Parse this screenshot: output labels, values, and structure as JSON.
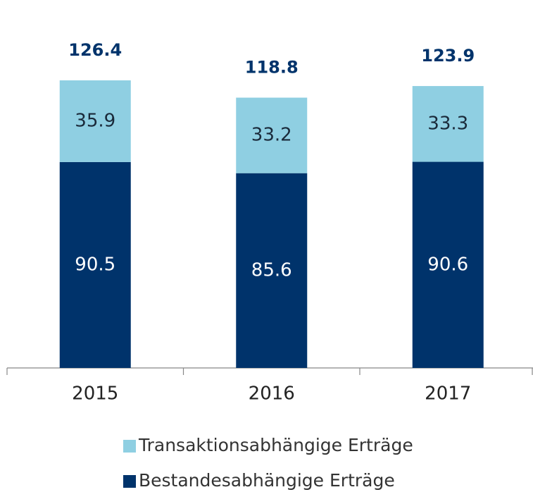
{
  "chart_data": {
    "type": "stacked_bar",
    "categories": [
      "2015",
      "2016",
      "2017"
    ],
    "series": [
      {
        "name": "Bestandesabhängige Erträge",
        "color": "#00336b",
        "label_color": "#ffffff",
        "values": [
          90.5,
          85.6,
          90.6
        ]
      },
      {
        "name": "Transaktionsabhängige Erträge",
        "color": "#8fcfe2",
        "label_color": "#1a2a3a",
        "values": [
          35.9,
          33.2,
          33.3
        ]
      }
    ],
    "totals": [
      126.4,
      118.8,
      123.9
    ],
    "legend_position": "bottom",
    "grid": false
  }
}
